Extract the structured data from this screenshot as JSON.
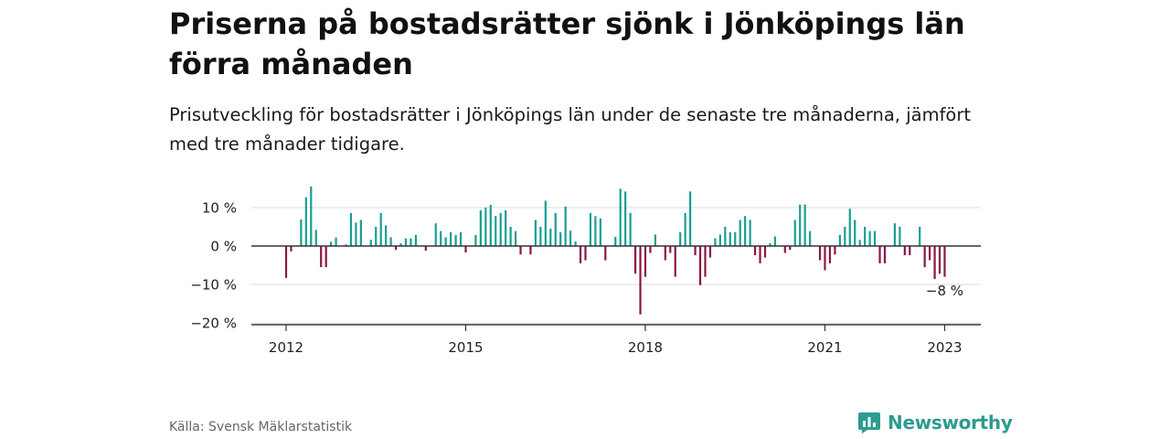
{
  "header": {
    "title": "Priserna på bostadsrätter sjönk i Jönköpings län förra månaden",
    "subtitle": "Prisutveckling för bostadsrätter i Jönköpings län under de senaste tre månaderna, jämfört med tre månader tidigare."
  },
  "footer": {
    "source": "Källa: Svensk Mäklarstatistik",
    "brand": "Newsworthy"
  },
  "colors": {
    "positive": "#1a9e92",
    "negative": "#8c1545",
    "grid": "#dddddd",
    "axis": "#333333"
  },
  "icons": {
    "brand_logo": "newsworthy-logo-icon"
  },
  "chart_data": {
    "type": "bar",
    "title": "Priserna på bostadsrätter sjönk i Jönköpings län förra månaden",
    "subtitle": "Prisutveckling för bostadsrätter i Jönköpings län under de senaste tre månaderna, jämfört med tre månader tidigare.",
    "xlabel": "",
    "ylabel": "",
    "ylim": [
      -20,
      15
    ],
    "yticks": [
      {
        "value": 10,
        "label": "10 %"
      },
      {
        "value": 0,
        "label": "0 %"
      },
      {
        "value": -10,
        "label": "−10 %"
      },
      {
        "value": -20,
        "label": "−20 %"
      }
    ],
    "xticks": [
      {
        "date": "2012-01",
        "label": "2012"
      },
      {
        "date": "2015-01",
        "label": "2015"
      },
      {
        "date": "2018-01",
        "label": "2018"
      },
      {
        "date": "2021-01",
        "label": "2021"
      },
      {
        "date": "2023-01",
        "label": "2023"
      }
    ],
    "grid": true,
    "legend": "none",
    "annotation": {
      "date": "2023-01",
      "label": "−8 %"
    },
    "series": [
      {
        "values": [
          [
            "2012-01",
            -8.3
          ],
          [
            "2012-02",
            -1.4
          ],
          [
            "2012-03",
            0
          ],
          [
            "2012-04",
            6.9
          ],
          [
            "2012-05",
            12.7
          ],
          [
            "2012-06",
            15.5
          ],
          [
            "2012-07",
            4.2
          ],
          [
            "2012-08",
            -5.5
          ],
          [
            "2012-09",
            -5.5
          ],
          [
            "2012-10",
            1.1
          ],
          [
            "2012-11",
            2.2
          ],
          [
            "2012-12",
            0
          ],
          [
            "2013-01",
            0.4
          ],
          [
            "2013-02",
            8.6
          ],
          [
            "2013-03",
            6.1
          ],
          [
            "2013-04",
            6.8
          ],
          [
            "2013-05",
            0
          ],
          [
            "2013-06",
            1.6
          ],
          [
            "2013-07",
            5.0
          ],
          [
            "2013-08",
            8.6
          ],
          [
            "2013-09",
            5.4
          ],
          [
            "2013-10",
            2.3
          ],
          [
            "2013-11",
            -1.0
          ],
          [
            "2013-12",
            0.7
          ],
          [
            "2014-01",
            2.0
          ],
          [
            "2014-02",
            2.0
          ],
          [
            "2014-03",
            2.9
          ],
          [
            "2014-04",
            0
          ],
          [
            "2014-05",
            -1.2
          ],
          [
            "2014-06",
            0
          ],
          [
            "2014-07",
            5.9
          ],
          [
            "2014-08",
            3.9
          ],
          [
            "2014-09",
            2.3
          ],
          [
            "2014-10",
            3.6
          ],
          [
            "2014-11",
            2.9
          ],
          [
            "2014-12",
            3.6
          ],
          [
            "2015-01",
            -1.7
          ],
          [
            "2015-02",
            0
          ],
          [
            "2015-03",
            2.9
          ],
          [
            "2015-04",
            9.3
          ],
          [
            "2015-05",
            10.0
          ],
          [
            "2015-06",
            10.7
          ],
          [
            "2015-07",
            7.8
          ],
          [
            "2015-08",
            8.6
          ],
          [
            "2015-09",
            9.3
          ],
          [
            "2015-10",
            5.0
          ],
          [
            "2015-11",
            3.9
          ],
          [
            "2015-12",
            -2.2
          ],
          [
            "2016-01",
            0
          ],
          [
            "2016-02",
            -2.2
          ],
          [
            "2016-03",
            6.8
          ],
          [
            "2016-04",
            5.0
          ],
          [
            "2016-05",
            11.8
          ],
          [
            "2016-06",
            4.5
          ],
          [
            "2016-07",
            8.6
          ],
          [
            "2016-08",
            3.6
          ],
          [
            "2016-09",
            10.3
          ],
          [
            "2016-10",
            4.0
          ],
          [
            "2016-11",
            1.2
          ],
          [
            "2016-12",
            -4.5
          ],
          [
            "2017-01",
            -3.7
          ],
          [
            "2017-02",
            8.6
          ],
          [
            "2017-03",
            7.8
          ],
          [
            "2017-04",
            7.2
          ],
          [
            "2017-05",
            -3.7
          ],
          [
            "2017-06",
            0
          ],
          [
            "2017-07",
            2.4
          ],
          [
            "2017-08",
            14.9
          ],
          [
            "2017-09",
            14.2
          ],
          [
            "2017-10",
            8.6
          ],
          [
            "2017-11",
            -7.2
          ],
          [
            "2017-12",
            -17.8
          ],
          [
            "2018-01",
            -8.0
          ],
          [
            "2018-02",
            -1.8
          ],
          [
            "2018-03",
            3.0
          ],
          [
            "2018-04",
            0
          ],
          [
            "2018-05",
            -3.7
          ],
          [
            "2018-06",
            -1.8
          ],
          [
            "2018-07",
            -8.0
          ],
          [
            "2018-08",
            3.6
          ],
          [
            "2018-09",
            8.6
          ],
          [
            "2018-10",
            14.2
          ],
          [
            "2018-11",
            -2.4
          ],
          [
            "2018-12",
            -10.2
          ],
          [
            "2019-01",
            -8.0
          ],
          [
            "2019-02",
            -3.0
          ],
          [
            "2019-03",
            2.0
          ],
          [
            "2019-04",
            3.0
          ],
          [
            "2019-05",
            5.0
          ],
          [
            "2019-06",
            3.6
          ],
          [
            "2019-07",
            3.6
          ],
          [
            "2019-08",
            6.8
          ],
          [
            "2019-09",
            7.8
          ],
          [
            "2019-10",
            6.8
          ],
          [
            "2019-11",
            -2.4
          ],
          [
            "2019-12",
            -4.5
          ],
          [
            "2020-01",
            -3.0
          ],
          [
            "2020-02",
            0.7
          ],
          [
            "2020-03",
            2.5
          ],
          [
            "2020-04",
            0
          ],
          [
            "2020-05",
            -1.8
          ],
          [
            "2020-06",
            -1.0
          ],
          [
            "2020-07",
            6.8
          ],
          [
            "2020-08",
            10.8
          ],
          [
            "2020-09",
            10.8
          ],
          [
            "2020-10",
            3.9
          ],
          [
            "2020-11",
            0
          ],
          [
            "2020-12",
            -3.7
          ],
          [
            "2021-01",
            -6.3
          ],
          [
            "2021-02",
            -4.5
          ],
          [
            "2021-03",
            -2.2
          ],
          [
            "2021-04",
            2.9
          ],
          [
            "2021-05",
            5.0
          ],
          [
            "2021-06",
            9.7
          ],
          [
            "2021-07",
            6.8
          ],
          [
            "2021-08",
            1.6
          ],
          [
            "2021-09",
            5.0
          ],
          [
            "2021-10",
            3.9
          ],
          [
            "2021-11",
            3.9
          ],
          [
            "2021-12",
            -4.5
          ],
          [
            "2022-01",
            -4.5
          ],
          [
            "2022-02",
            0
          ],
          [
            "2022-03",
            5.9
          ],
          [
            "2022-04",
            5.0
          ],
          [
            "2022-05",
            -2.4
          ],
          [
            "2022-06",
            -2.4
          ],
          [
            "2022-07",
            0
          ],
          [
            "2022-08",
            5.0
          ],
          [
            "2022-09",
            -5.5
          ],
          [
            "2022-10",
            -3.7
          ],
          [
            "2022-11",
            -8.6
          ],
          [
            "2022-12",
            -7.2
          ],
          [
            "2023-01",
            -8.0
          ]
        ]
      }
    ]
  }
}
